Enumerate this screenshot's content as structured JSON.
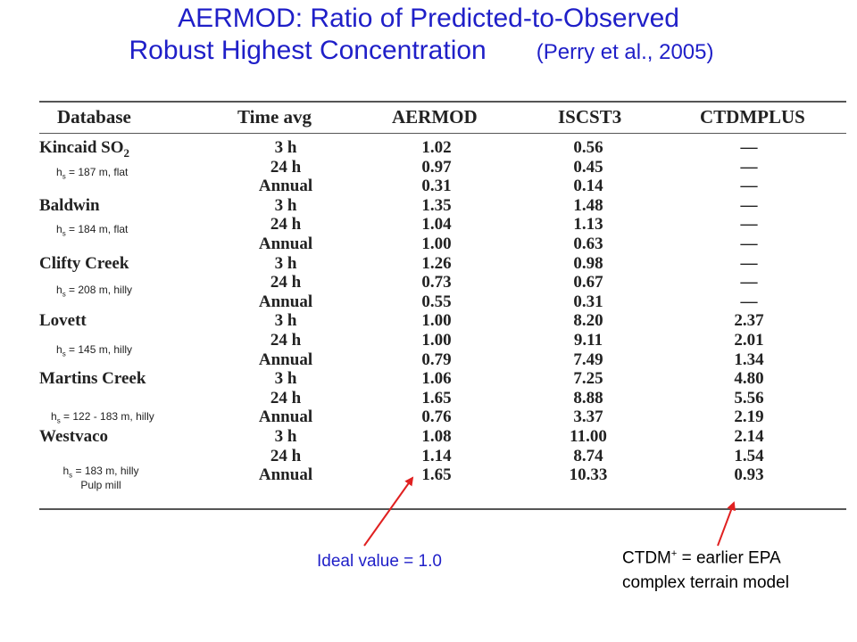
{
  "title": {
    "line1": "AERMOD: Ratio of Predicted-to-Observed",
    "line2": "Robust Highest Concentration",
    "citation": "(Perry et al., 2005)"
  },
  "table": {
    "headers": [
      "Database",
      "Time avg",
      "AERMOD",
      "ISCST3",
      "CTDMPLUS"
    ],
    "rows": [
      {
        "db": "Kincaid SO",
        "db_sub": "2",
        "time": "3 h",
        "aermod": "1.02",
        "iscst3": "0.56",
        "ctdm": "—"
      },
      {
        "db": "",
        "time": "24 h",
        "aermod": "0.97",
        "iscst3": "0.45",
        "ctdm": "—"
      },
      {
        "db": "",
        "time": "Annual",
        "aermod": "0.31",
        "iscst3": "0.14",
        "ctdm": "—"
      },
      {
        "db": "Baldwin",
        "time": "3 h",
        "aermod": "1.35",
        "iscst3": "1.48",
        "ctdm": "—"
      },
      {
        "db": "",
        "time": "24 h",
        "aermod": "1.04",
        "iscst3": "1.13",
        "ctdm": "—"
      },
      {
        "db": "",
        "time": "Annual",
        "aermod": "1.00",
        "iscst3": "0.63",
        "ctdm": "—"
      },
      {
        "db": "Clifty Creek",
        "time": "3 h",
        "aermod": "1.26",
        "iscst3": "0.98",
        "ctdm": "—"
      },
      {
        "db": "",
        "time": "24 h",
        "aermod": "0.73",
        "iscst3": "0.67",
        "ctdm": "—"
      },
      {
        "db": "",
        "time": "Annual",
        "aermod": "0.55",
        "iscst3": "0.31",
        "ctdm": "—"
      },
      {
        "db": "Lovett",
        "time": "3 h",
        "aermod": "1.00",
        "iscst3": "8.20",
        "ctdm": "2.37"
      },
      {
        "db": "",
        "time": "24 h",
        "aermod": "1.00",
        "iscst3": "9.11",
        "ctdm": "2.01"
      },
      {
        "db": "",
        "time": "Annual",
        "aermod": "0.79",
        "iscst3": "7.49",
        "ctdm": "1.34"
      },
      {
        "db": "Martins Creek",
        "time": "3 h",
        "aermod": "1.06",
        "iscst3": "7.25",
        "ctdm": "4.80"
      },
      {
        "db": "",
        "time": "24 h",
        "aermod": "1.65",
        "iscst3": "8.88",
        "ctdm": "5.56"
      },
      {
        "db": "",
        "time": "Annual",
        "aermod": "0.76",
        "iscst3": "3.37",
        "ctdm": "2.19"
      },
      {
        "db": "Westvaco",
        "time": "3 h",
        "aermod": "1.08",
        "iscst3": "11.00",
        "ctdm": "2.14"
      },
      {
        "db": "",
        "time": "24 h",
        "aermod": "1.14",
        "iscst3": "8.74",
        "ctdm": "1.54"
      },
      {
        "db": "",
        "time": "Annual",
        "aermod": "1.65",
        "iscst3": "10.33",
        "ctdm": "0.93"
      }
    ],
    "site_notes": [
      {
        "symbol": "h",
        "sub": "s",
        "text": " = 187 m, flat"
      },
      {
        "symbol": "h",
        "sub": "s",
        "text": " = 184 m, flat"
      },
      {
        "symbol": "h",
        "sub": "s",
        "text": " = 208 m, hilly"
      },
      {
        "symbol": "h",
        "sub": "s",
        "text": " = 145 m, hilly"
      },
      {
        "symbol": "h",
        "sub": "s",
        "text": " = 122 - 183 m, hilly"
      },
      {
        "symbol": "h",
        "sub": "s",
        "text": " = 183 m, hilly",
        "extra": "Pulp mill"
      }
    ]
  },
  "annotations": {
    "ideal": "Ideal value = 1.0",
    "ctdm_prefix": "CTDM",
    "ctdm_sup": "+",
    "ctdm_line1_rest": " = earlier EPA",
    "ctdm_line2": "complex terrain model"
  },
  "colors": {
    "title": "#1f1fc8",
    "arrow": "#e02020",
    "ideal_text": "#1f1fc8"
  }
}
